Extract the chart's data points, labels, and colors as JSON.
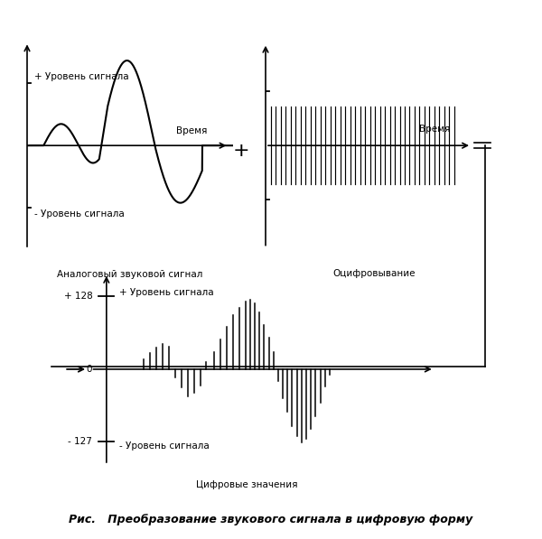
{
  "bg_color": "#ffffff",
  "text_color": "#000000",
  "title_text": "Рис.   Преобразование звукового сигнала в цифровую форму",
  "panel1_label": "Аналоговый звуковой сигнал",
  "panel2_label": "Оцифровывание",
  "panel3_label": "Цифровые значения",
  "plus_symbol": "+",
  "time_label": "Время",
  "signal_plus_label": "+ Уровень сигнала",
  "signal_minus_label": "- Уровень сигнала",
  "signal_plus_label3": "+ Уровень сигнала",
  "signal_minus_label3": "- Уровень сигнала",
  "val_128": "+ 128",
  "val_0": "0",
  "val_127": "- 127",
  "fontsize_labels": 7.5,
  "fontsize_title": 9,
  "fontsize_tick": 7.5,
  "fontsize_plus": 16
}
